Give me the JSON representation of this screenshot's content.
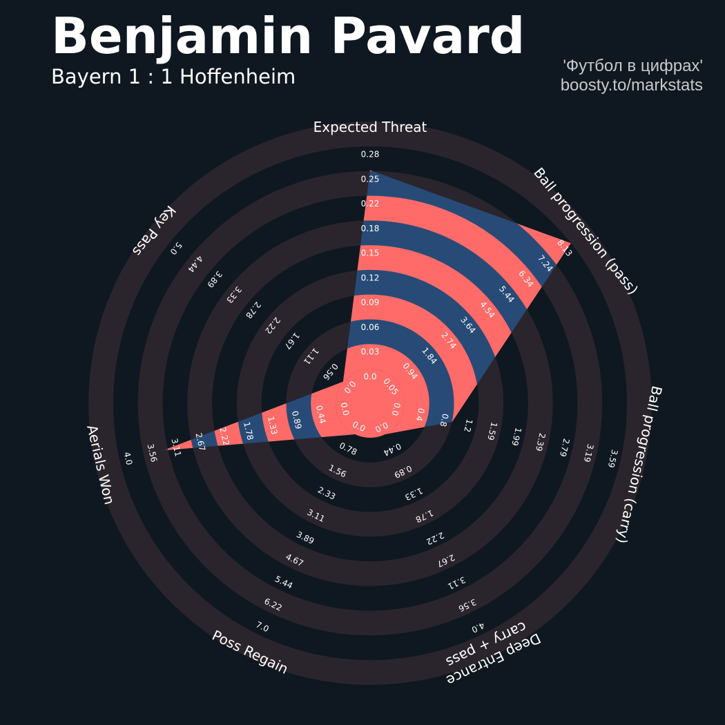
{
  "header": {
    "title": "Benjamin Pavard",
    "subtitle": "Bayern 1 : 1 Hoffenheim",
    "credit_line1": "'Футбол в цифрах'",
    "credit_line2": "boosty.to/markstats"
  },
  "colors": {
    "background": "#0f1820",
    "ring": "#2a252c",
    "fill_a": "#ff6b68",
    "fill_b": "#274b76",
    "text": "#ffffff"
  },
  "chart_data": {
    "type": "radar",
    "title": "Benjamin Pavard",
    "subtitle": "Bayern 1 : 1 Hoffenheim",
    "categories": [
      "Expected Threat",
      "Ball progression (pass)",
      "Ball progression (carry)",
      "Deep Entrance\ncarry + pass",
      "Poss Regain",
      "Aerials Won",
      "Key Pass"
    ],
    "ranges": [
      [
        0.0,
        0.28
      ],
      [
        0.05,
        8.13
      ],
      [
        0.0,
        3.59
      ],
      [
        0.0,
        4.0
      ],
      [
        0.0,
        7.0
      ],
      [
        0.0,
        4.0
      ],
      [
        0.0,
        5.0
      ]
    ],
    "tick_labels": [
      [
        "0.0",
        "0.03",
        "0.06",
        "0.09",
        "0.12",
        "0.15",
        "0.18",
        "0.22",
        "0.25",
        "0.28"
      ],
      [
        "0.05",
        "0.94",
        "1.84",
        "2.74",
        "3.64",
        "4.54",
        "5.44",
        "6.34",
        "7.24",
        "8.13"
      ],
      [
        "0.0",
        "0.4",
        "0.8",
        "1.2",
        "1.59",
        "1.99",
        "2.39",
        "2.79",
        "3.19",
        "3.59"
      ],
      [
        "0.0",
        "0.44",
        "0.89",
        "1.33",
        "1.78",
        "2.22",
        "2.67",
        "3.11",
        "3.56",
        "4.0"
      ],
      [
        "0.0",
        "0.78",
        "1.56",
        "2.33",
        "3.11",
        "3.89",
        "4.67",
        "5.44",
        "6.22",
        "7.0"
      ],
      [
        "0.0",
        "0.44",
        "0.89",
        "1.33",
        "1.78",
        "2.22",
        "2.67",
        "3.11",
        "3.56",
        "4.0"
      ],
      [
        "0.0",
        "0.56",
        "1.11",
        "1.67",
        "2.22",
        "2.78",
        "3.33",
        "3.89",
        "4.44",
        "5.0"
      ]
    ],
    "series": [
      {
        "values": [
          0.25,
          8.13,
          0.8,
          0.0,
          0.0,
          3.2,
          0.0
        ]
      }
    ],
    "grid": true
  }
}
